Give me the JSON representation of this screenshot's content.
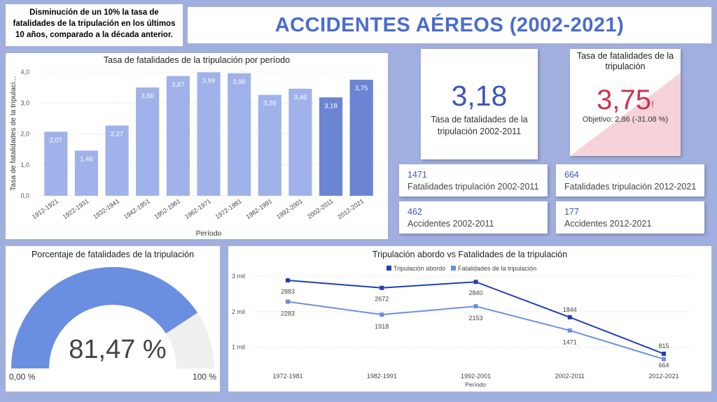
{
  "note": "Disminución de un 10% la tasa de fatalidades de la tripulación en los últimos 10 años, comparado a la década anterior.",
  "title": "ACCIDENTES AÉREOS (2002-2021)",
  "kpi_rate_2002_2011": {
    "value": "3,18",
    "label": "Tasa de fatalidades de la tripulación 2002-2011"
  },
  "kpi_target": {
    "header": "Tasa de fatalidades de la tripulación",
    "value": "3,75",
    "alert": "!",
    "objective": "Objetivo: 2,86 (-31.08 %)",
    "color": "#c9354d"
  },
  "stats": [
    {
      "value": "1471",
      "label": "Fatalidades tripulación 2002-2011"
    },
    {
      "value": "664",
      "label": "Fatalidades tripulación 2012-2021"
    },
    {
      "value": "462",
      "label": "Accidentes 2002-2011"
    },
    {
      "value": "177",
      "label": "Accidentes 2012-2021"
    }
  ],
  "gauge": {
    "title": "Porcentaje de fatalidades de la tripulación",
    "value_label": "81,47 %",
    "value": 81.47,
    "min_label": "0,00 %",
    "max_label": "100 %"
  },
  "chart_data": [
    {
      "type": "bar",
      "title": "Tasa de fatalidades de la tripulación por período",
      "xlabel": "Período",
      "ylabel": "Tasa de fatalidades de la tripulaci...",
      "ylim": [
        0,
        4
      ],
      "yticks": [
        "0,0",
        "1,0",
        "2,0",
        "3,0",
        "4,0"
      ],
      "categories": [
        "1912-1921",
        "1922-1931",
        "1932-1941",
        "1942-1951",
        "1952-1961",
        "1962-1971",
        "1972-1981",
        "1982-1991",
        "1992-2001",
        "2002-2011",
        "2012-2021"
      ],
      "values": [
        2.07,
        1.46,
        2.27,
        3.5,
        3.87,
        3.99,
        3.96,
        3.26,
        3.46,
        3.18,
        3.75
      ],
      "labels": [
        "2,07",
        "1,46",
        "2,27",
        "3,50",
        "3,87",
        "3,99",
        "3,96",
        "3,26",
        "3,46",
        "3,18",
        "3,75"
      ],
      "colors": [
        "#9fb3ea",
        "#9fb3ea",
        "#9fb3ea",
        "#9fb3ea",
        "#9fb3ea",
        "#9fb3ea",
        "#9fb3ea",
        "#9fb3ea",
        "#9fb3ea",
        "#6b84d3",
        "#6b84d3"
      ],
      "grid": true
    },
    {
      "type": "line",
      "title": "Tripulación abordo vs Fatalidades de la tripulación",
      "xlabel": "Período",
      "ylabel": "",
      "x": [
        "1972-1981",
        "1982-1991",
        "1992-2001",
        "2002-2011",
        "2012-2021"
      ],
      "ylim": [
        500,
        3100
      ],
      "yticks": [
        {
          "value": 1000,
          "label": "1 mil"
        },
        {
          "value": 2000,
          "label": "2 mil"
        },
        {
          "value": 3000,
          "label": "3 mil"
        }
      ],
      "legend": "top-center",
      "series": [
        {
          "name": "Tripulación abordo",
          "values": [
            2883,
            2672,
            2840,
            1844,
            815
          ],
          "color": "#1f3fb8"
        },
        {
          "name": "Fatalidades de la tripulación",
          "values": [
            2283,
            1918,
            2153,
            1471,
            664
          ],
          "color": "#6b8fe0"
        }
      ]
    }
  ]
}
